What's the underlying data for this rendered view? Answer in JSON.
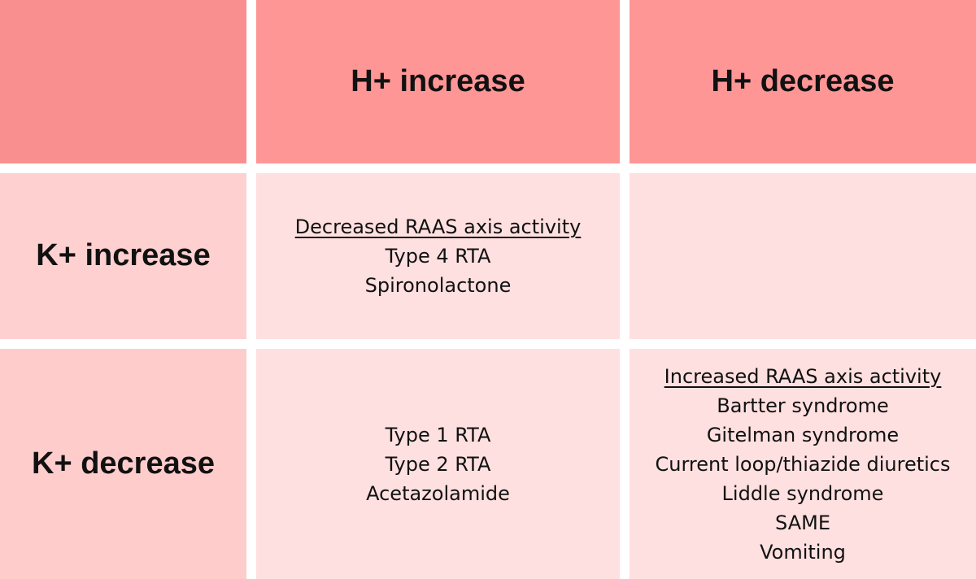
{
  "table": {
    "column_headers": [
      "",
      "H+ increase",
      "H+ decrease"
    ],
    "rows": [
      {
        "header": "K+ increase",
        "cells": [
          {
            "underlined": "Decreased RAAS axis activity",
            "items": [
              "Type 4 RTA",
              "Spironolactone"
            ]
          },
          {
            "underlined": "",
            "items": []
          }
        ]
      },
      {
        "header": "K+ decrease",
        "cells": [
          {
            "underlined": "",
            "items": [
              "Type 1 RTA",
              "Type 2 RTA",
              "Acetazolamide"
            ]
          },
          {
            "underlined": "Increased RAAS axis activity",
            "items": [
              "Bartter syndrome",
              "Gitelman syndrome",
              "Current loop/thiazide diuretics",
              "Liddle syndrome",
              "SAME",
              "Vomiting"
            ]
          }
        ]
      }
    ]
  },
  "colors": {
    "header_top": "#ff9696",
    "header_left": "#ffcccc",
    "body": "#ffe0e0",
    "gap": "#ffffff"
  }
}
